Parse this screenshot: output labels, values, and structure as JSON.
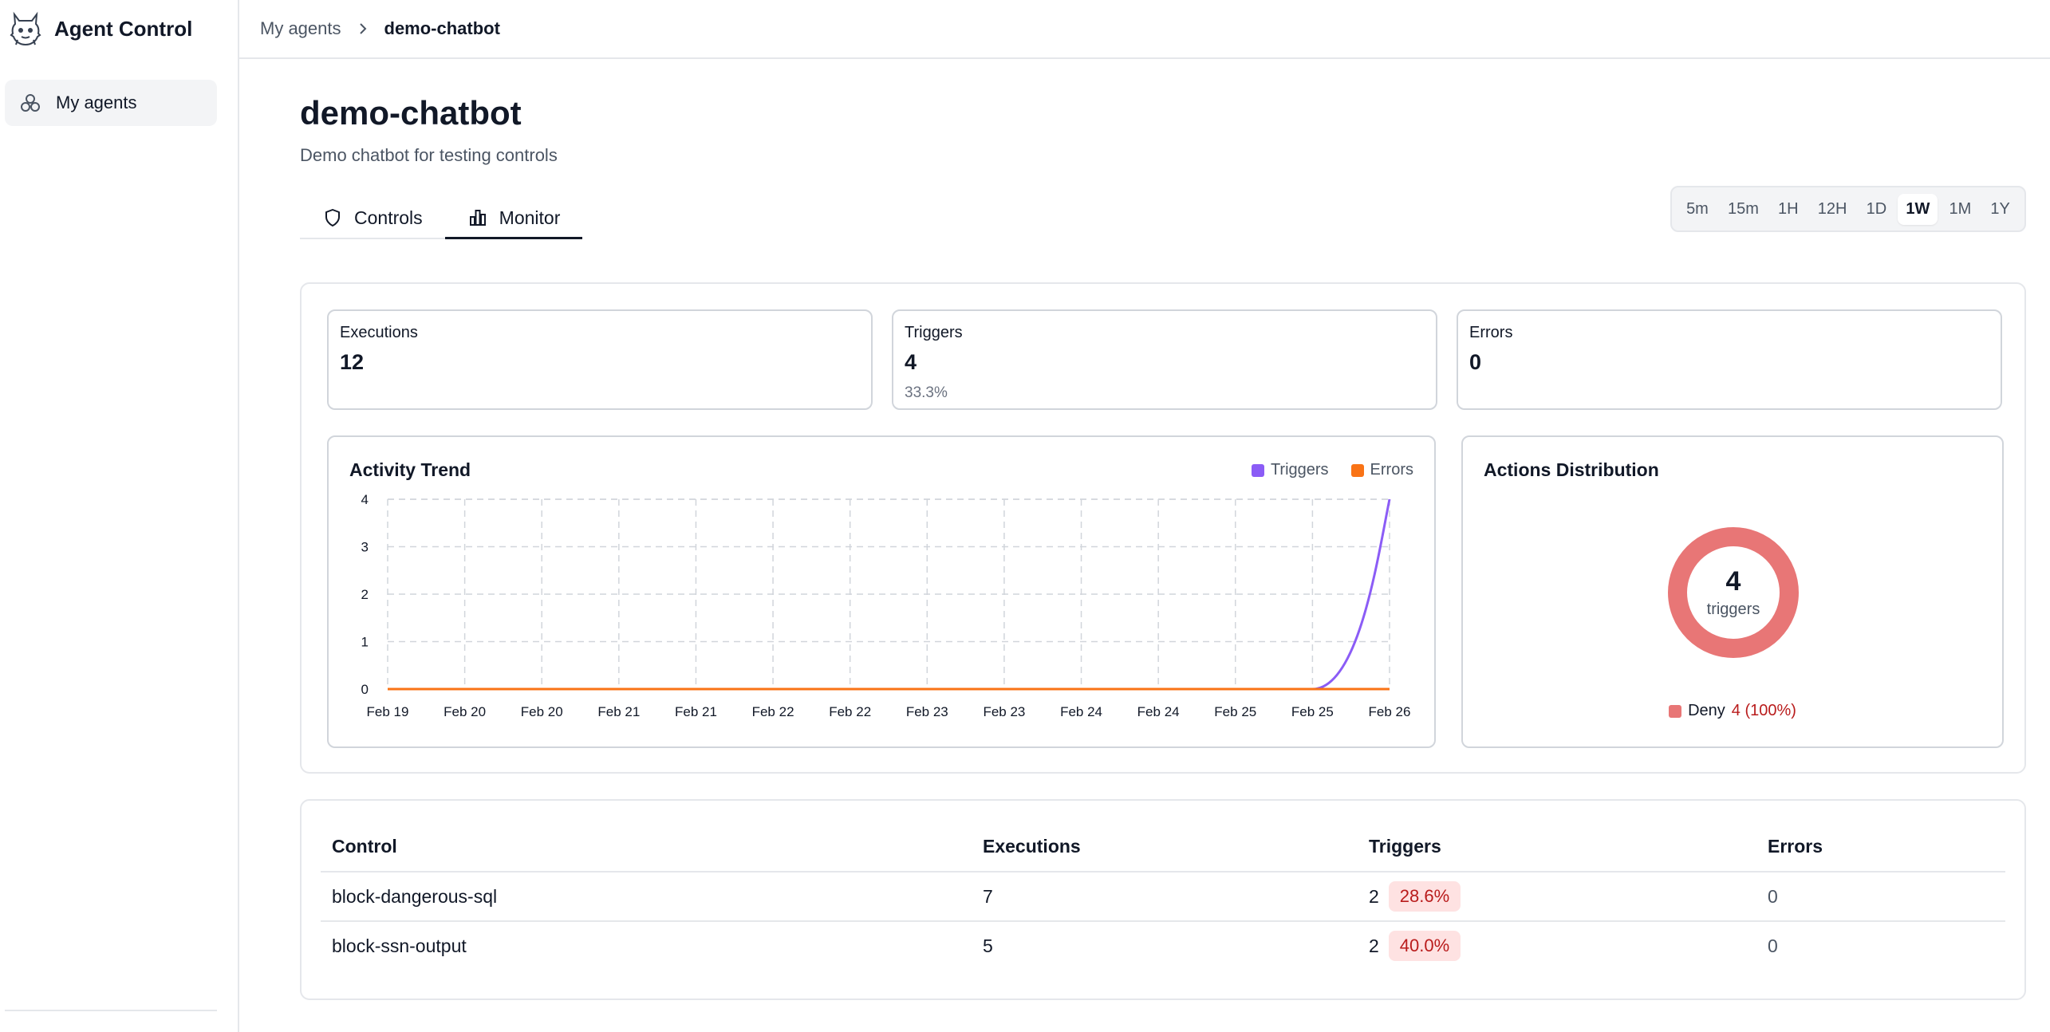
{
  "app": {
    "title": "Agent Control"
  },
  "sidebar": {
    "items": [
      {
        "label": "My agents",
        "icon": "agents-icon"
      }
    ]
  },
  "breadcrumb": {
    "parent": "My agents",
    "current": "demo-chatbot"
  },
  "agent": {
    "name": "demo-chatbot",
    "description": "Demo chatbot for testing controls"
  },
  "tabs": [
    {
      "label": "Controls",
      "icon": "shield-icon",
      "active": false
    },
    {
      "label": "Monitor",
      "icon": "bar-chart-icon",
      "active": true
    }
  ],
  "time_ranges": [
    "5m",
    "15m",
    "1H",
    "12H",
    "1D",
    "1W",
    "1M",
    "1Y"
  ],
  "selected_range": "1W",
  "stats": {
    "executions": {
      "label": "Executions",
      "value": "12"
    },
    "triggers": {
      "label": "Triggers",
      "value": "4",
      "sub": "33.3%"
    },
    "errors": {
      "label": "Errors",
      "value": "0"
    }
  },
  "activity": {
    "title": "Activity Trend",
    "legend": {
      "triggers": "Triggers",
      "errors": "Errors"
    }
  },
  "chart_data": {
    "type": "line",
    "title": "Activity Trend",
    "x": [
      "Feb 19",
      "Feb 20",
      "Feb 20",
      "Feb 21",
      "Feb 21",
      "Feb 22",
      "Feb 22",
      "Feb 23",
      "Feb 23",
      "Feb 24",
      "Feb 24",
      "Feb 25",
      "Feb 25",
      "Feb 26"
    ],
    "yticks": [
      0,
      1,
      2,
      3,
      4
    ],
    "ylim": [
      0,
      4
    ],
    "grid": true,
    "legend": "top-right",
    "series": [
      {
        "name": "Triggers",
        "color": "#8b5cf6",
        "values": [
          0,
          0,
          0,
          0,
          0,
          0,
          0,
          0,
          0,
          0,
          0,
          0,
          0,
          4
        ]
      },
      {
        "name": "Errors",
        "color": "#f97316",
        "values": [
          0,
          0,
          0,
          0,
          0,
          0,
          0,
          0,
          0,
          0,
          0,
          0,
          0,
          0
        ]
      }
    ]
  },
  "distribution": {
    "title": "Actions Distribution",
    "total": "4",
    "total_label": "triggers",
    "items": [
      {
        "name": "Deny",
        "value": "4 (100%)",
        "color": "#e87676"
      }
    ]
  },
  "table": {
    "headers": [
      "Control",
      "Executions",
      "Triggers",
      "Errors"
    ],
    "rows": [
      {
        "control": "block-dangerous-sql",
        "executions": "7",
        "triggers": "2",
        "rate": "28.6%",
        "errors": "0"
      },
      {
        "control": "block-ssn-output",
        "executions": "5",
        "triggers": "2",
        "rate": "40.0%",
        "errors": "0"
      }
    ]
  }
}
